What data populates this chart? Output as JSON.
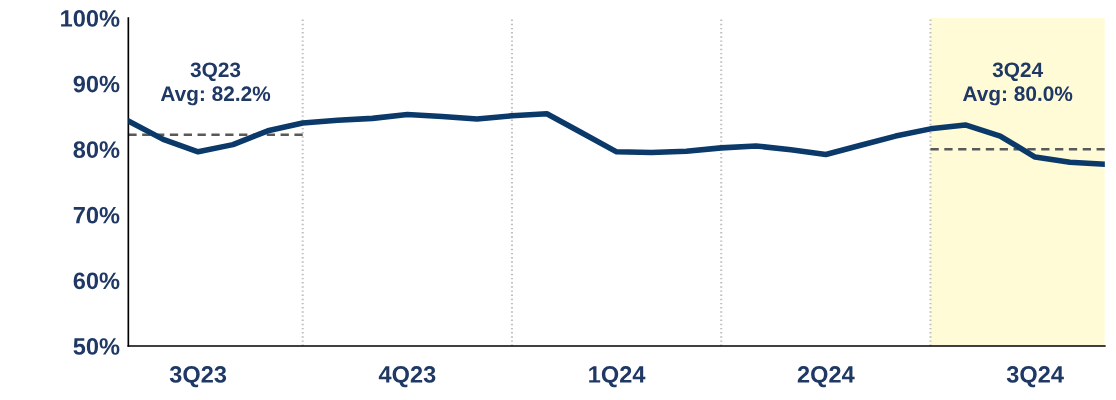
{
  "chart_data": {
    "type": "line",
    "categories": [
      null,
      null,
      "3Q23",
      null,
      null,
      null,
      null,
      null,
      "4Q23",
      null,
      null,
      null,
      null,
      null,
      "1Q24",
      null,
      null,
      null,
      null,
      null,
      "2Q24",
      null,
      null,
      null,
      null,
      null,
      "3Q24",
      null,
      null
    ],
    "ylim": [
      50,
      100
    ],
    "yticks": [
      {
        "value": 50,
        "label": "50%"
      },
      {
        "value": 60,
        "label": "60%"
      },
      {
        "value": 70,
        "label": "70%"
      },
      {
        "value": 80,
        "label": "80%"
      },
      {
        "value": 90,
        "label": "90%"
      },
      {
        "value": 100,
        "label": "100%"
      }
    ],
    "grid": "x",
    "marker": "none",
    "series": [
      {
        "color": "#0b3a6a",
        "line_style": "solid",
        "values": [
          84.3,
          81.5,
          79.6,
          80.7,
          82.8,
          84.0,
          84.4,
          84.7,
          85.3,
          85.0,
          84.6,
          85.1,
          85.4,
          82.5,
          79.6,
          79.5,
          79.7,
          80.2,
          80.5,
          79.9,
          79.2,
          80.6,
          82.0,
          83.1,
          83.7,
          82.0,
          78.8,
          78.0,
          77.7
        ]
      },
      {
        "color": "#595959",
        "line_style": "dashed",
        "values": [
          82.2,
          82.2,
          82.2,
          82.2,
          82.2,
          82.2,
          null,
          null,
          null,
          null,
          null,
          null,
          null,
          null,
          null,
          null,
          null,
          null,
          null,
          null,
          null,
          null,
          null,
          null,
          null,
          null,
          null,
          null,
          null
        ]
      },
      {
        "color": "#595959",
        "line_style": "dashed",
        "values": [
          null,
          null,
          null,
          null,
          null,
          null,
          null,
          null,
          null,
          null,
          null,
          null,
          null,
          null,
          null,
          null,
          null,
          null,
          null,
          null,
          null,
          null,
          null,
          80.0,
          80.0,
          80.0,
          80.0,
          80.0,
          80.0
        ]
      }
    ],
    "annotations": [
      "3Q23\nAvg: 82.2%",
      "3Q24\nAvg: 80.0%"
    ]
  }
}
